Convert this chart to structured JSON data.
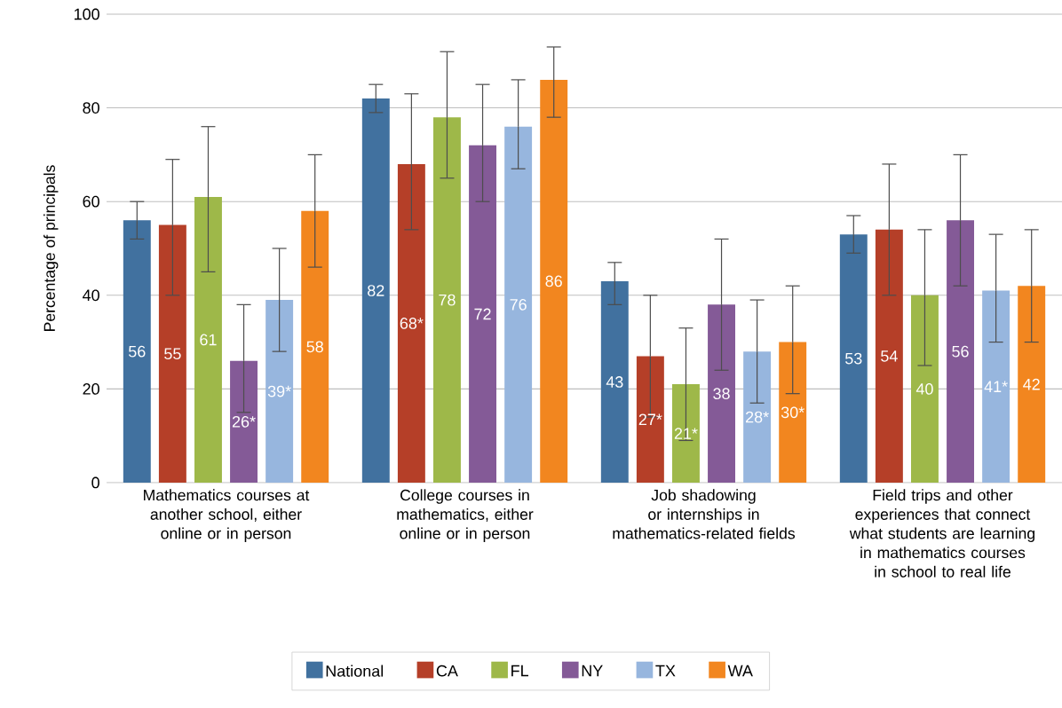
{
  "chart_data": {
    "type": "bar",
    "ylabel": "Percentage of principals",
    "categories": [
      "Mathematics courses at another school, either online or in person",
      "College courses in mathematics, either online or in person",
      "Job shadowing or internships in mathematics-related fields",
      "Field trips and other experiences that connect what students are learning in mathematics courses in school to real life"
    ],
    "series": [
      {
        "name": "National",
        "color": "#41719f",
        "values": [
          56,
          82,
          43,
          53
        ],
        "value_labels": [
          "56",
          "82",
          "43",
          "53"
        ],
        "errors": [
          [
            52,
            60
          ],
          [
            79,
            85
          ],
          [
            38,
            47
          ],
          [
            49,
            57
          ]
        ]
      },
      {
        "name": "CA",
        "color": "#b53f28",
        "values": [
          55,
          68,
          27,
          54
        ],
        "value_labels": [
          "55",
          "68*",
          "27*",
          "54"
        ],
        "errors": [
          [
            40,
            69
          ],
          [
            54,
            83
          ],
          [
            14,
            40
          ],
          [
            40,
            68
          ]
        ]
      },
      {
        "name": "FL",
        "color": "#9eb849",
        "values": [
          61,
          78,
          21,
          40
        ],
        "value_labels": [
          "61",
          "78",
          "21*",
          "40"
        ],
        "errors": [
          [
            45,
            76
          ],
          [
            65,
            92
          ],
          [
            9,
            33
          ],
          [
            25,
            54
          ]
        ]
      },
      {
        "name": "NY",
        "color": "#845a97",
        "values": [
          26,
          72,
          38,
          56
        ],
        "value_labels": [
          "26*",
          "72",
          "38",
          "56"
        ],
        "errors": [
          [
            15,
            38
          ],
          [
            60,
            85
          ],
          [
            24,
            52
          ],
          [
            42,
            70
          ]
        ]
      },
      {
        "name": "TX",
        "color": "#97b6de",
        "values": [
          39,
          76,
          28,
          41
        ],
        "value_labels": [
          "39*",
          "76",
          "28*",
          "41*"
        ],
        "errors": [
          [
            28,
            50
          ],
          [
            67,
            86
          ],
          [
            17,
            39
          ],
          [
            30,
            53
          ]
        ]
      },
      {
        "name": "WA",
        "color": "#f2861f",
        "values": [
          58,
          86,
          30,
          42
        ],
        "value_labels": [
          "58",
          "86",
          "30*",
          "42"
        ],
        "errors": [
          [
            46,
            70
          ],
          [
            78,
            93
          ],
          [
            19,
            42
          ],
          [
            30,
            54
          ]
        ]
      }
    ],
    "ylim": [
      0,
      100
    ],
    "yticks": [
      0,
      20,
      40,
      60,
      80,
      100
    ],
    "grid": "y",
    "legend": "bottom"
  }
}
